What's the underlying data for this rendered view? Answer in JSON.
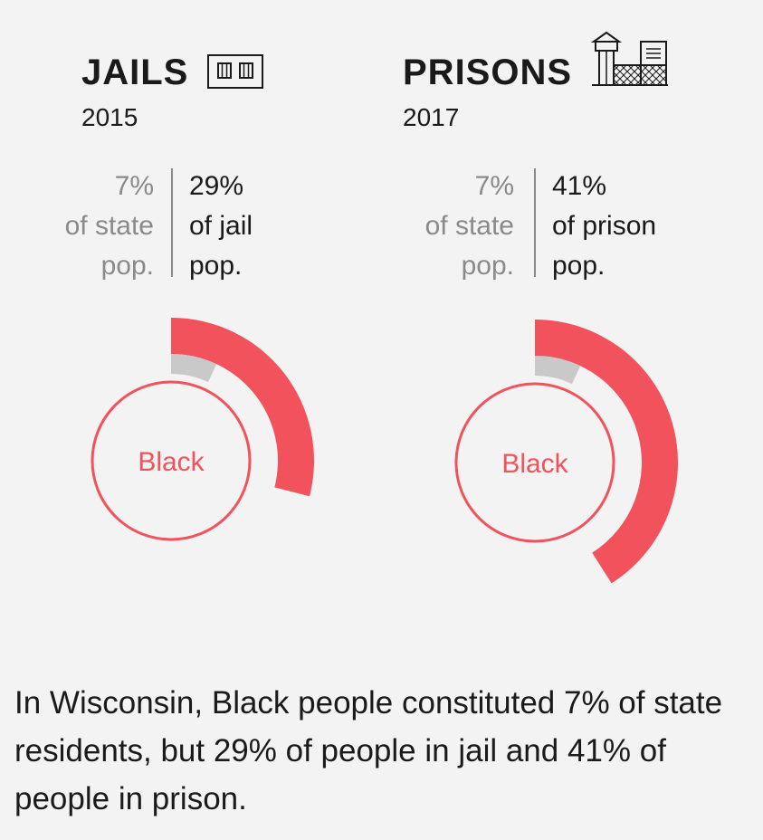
{
  "colors": {
    "accent": "#f2525b",
    "gray_wedge": "#c9c9c9",
    "muted_text": "#8a8a8a",
    "background": "#f3f3f3"
  },
  "panels": [
    {
      "title": "JAILS",
      "icon": "jail-cell-icon",
      "year": "2015",
      "state_pct_text": "7%",
      "state_line2": "of state",
      "state_line3": "pop.",
      "facility_pct_text": "29%",
      "facility_line2": "of jail",
      "facility_line3": "pop.",
      "center_label": "Black"
    },
    {
      "title": "PRISONS",
      "icon": "prison-building-icon",
      "year": "2017",
      "state_pct_text": "7%",
      "state_line2": "of state",
      "state_line3": "pop.",
      "facility_pct_text": "41%",
      "facility_line2": "of prison",
      "facility_line3": "pop.",
      "center_label": "Black"
    }
  ],
  "chart_data": [
    {
      "type": "pie",
      "title": "JAILS",
      "subtitle": "2015",
      "series": [
        {
          "name": "of state pop.",
          "values": [
            7
          ]
        },
        {
          "name": "of jail pop.",
          "values": [
            29
          ]
        }
      ],
      "categories": [
        "Black"
      ]
    },
    {
      "type": "pie",
      "title": "PRISONS",
      "subtitle": "2017",
      "series": [
        {
          "name": "of state pop.",
          "values": [
            7
          ]
        },
        {
          "name": "of prison pop.",
          "values": [
            41
          ]
        }
      ],
      "categories": [
        "Black"
      ]
    }
  ],
  "caption": "In Wisconsin, Black people constituted 7% of state residents, but 29% of people in jail and 41% of people in prison."
}
